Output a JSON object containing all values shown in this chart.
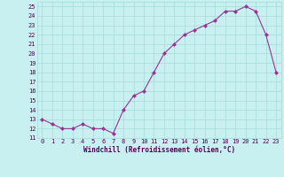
{
  "x": [
    0,
    1,
    2,
    3,
    4,
    5,
    6,
    7,
    8,
    9,
    10,
    11,
    12,
    13,
    14,
    15,
    16,
    17,
    18,
    19,
    20,
    21,
    22,
    23
  ],
  "y": [
    13,
    12.5,
    12,
    12,
    12.5,
    12,
    12,
    11.5,
    14,
    15.5,
    16,
    18,
    20,
    21,
    22,
    22.5,
    23,
    23.5,
    24.5,
    24.5,
    25,
    24.5,
    22,
    18
  ],
  "xlabel": "Windchill (Refroidissement éolien,°C)",
  "line_color": "#993399",
  "marker": "D",
  "marker_size": 2.0,
  "bg_color": "#c8f0f0",
  "grid_color": "#aadddd",
  "ylim": [
    11,
    25.5
  ],
  "xlim": [
    -0.5,
    23.5
  ],
  "yticks": [
    11,
    12,
    13,
    14,
    15,
    16,
    17,
    18,
    19,
    20,
    21,
    22,
    23,
    24,
    25
  ],
  "xticks": [
    0,
    1,
    2,
    3,
    4,
    5,
    6,
    7,
    8,
    9,
    10,
    11,
    12,
    13,
    14,
    15,
    16,
    17,
    18,
    19,
    20,
    21,
    22,
    23
  ],
  "tick_fontsize": 5,
  "xlabel_fontsize": 5.5,
  "linewidth": 0.8
}
